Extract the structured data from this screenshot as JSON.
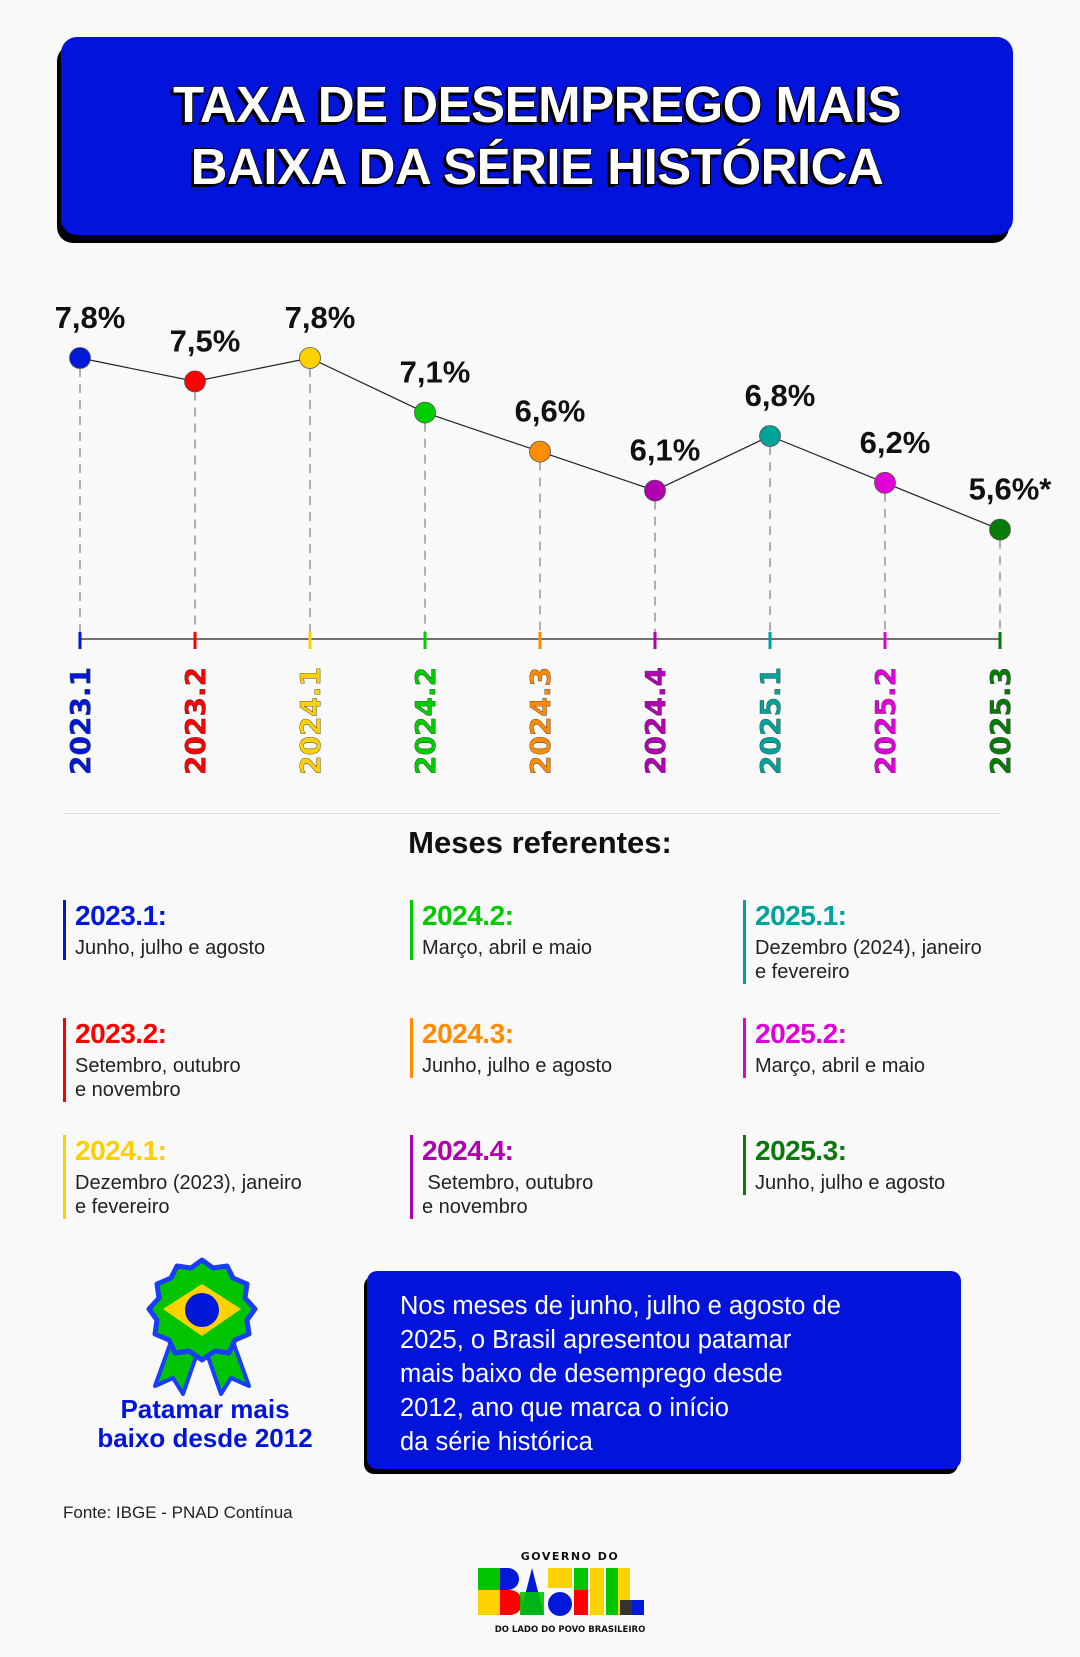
{
  "header": {
    "title_line1": "TAXA DE DESEMPREGO MAIS",
    "title_line2": "BAIXA DA SÉRIE HISTÓRICA"
  },
  "chart_data": {
    "type": "line",
    "categories": [
      "2023.1",
      "2023.2",
      "2024.1",
      "2024.2",
      "2024.3",
      "2024.4",
      "2025.1",
      "2025.2",
      "2025.3"
    ],
    "values": [
      7.8,
      7.5,
      7.8,
      7.1,
      6.6,
      6.1,
      6.8,
      6.2,
      5.6
    ],
    "data_labels": [
      "7,8%",
      "7,5%",
      "7,8%",
      "7,1%",
      "6,6%",
      "6,1%",
      "6,8%",
      "6,2%",
      "5,6%*"
    ],
    "colors": [
      "#0019d9",
      "#ff0000",
      "#ffd000",
      "#00cc00",
      "#ff8c00",
      "#b000b0",
      "#00a39a",
      "#e000d8",
      "#087a08"
    ],
    "grid": false
  },
  "legend": {
    "title": "Meses referentes:",
    "items": [
      {
        "label": "2023.1:",
        "lines": [
          "Junho, julho e agosto"
        ]
      },
      {
        "label": "2023.2:",
        "lines": [
          "Setembro, outubro",
          "e novembro"
        ]
      },
      {
        "label": "2024.1:",
        "lines": [
          "Dezembro (2023), janeiro",
          "e fevereiro"
        ]
      },
      {
        "label": "2024.2:",
        "lines": [
          "Março, abril e maio"
        ]
      },
      {
        "label": "2024.3:",
        "lines": [
          "Junho, julho e agosto"
        ]
      },
      {
        "label": "2024.4:",
        "lines": [
          " Setembro, outubro",
          "e novembro"
        ]
      },
      {
        "label": "2025.1:",
        "lines": [
          "Dezembro (2024), janeiro",
          "e fevereiro"
        ]
      },
      {
        "label": "2025.2:",
        "lines": [
          "Março, abril e maio"
        ]
      },
      {
        "label": "2025.3:",
        "lines": [
          "Junho, julho e agosto"
        ]
      }
    ]
  },
  "badge": {
    "line1": "Patamar mais",
    "line2": "baixo desde 2012",
    "icon": "award-ribbon-brazil-flag-icon"
  },
  "info": {
    "lines": [
      "Nos meses de junho, julho e agosto de",
      "2025, o Brasil apresentou patamar",
      "mais baixo de desemprego desde",
      "2012, ano que marca o início",
      "da série histórica"
    ]
  },
  "source": "Fonte: IBGE - PNAD Contínua",
  "logo": {
    "top": "GOVERNO DO",
    "main": "BRASIL",
    "bottom": "DO LADO DO POVO BRASILEIRO"
  }
}
